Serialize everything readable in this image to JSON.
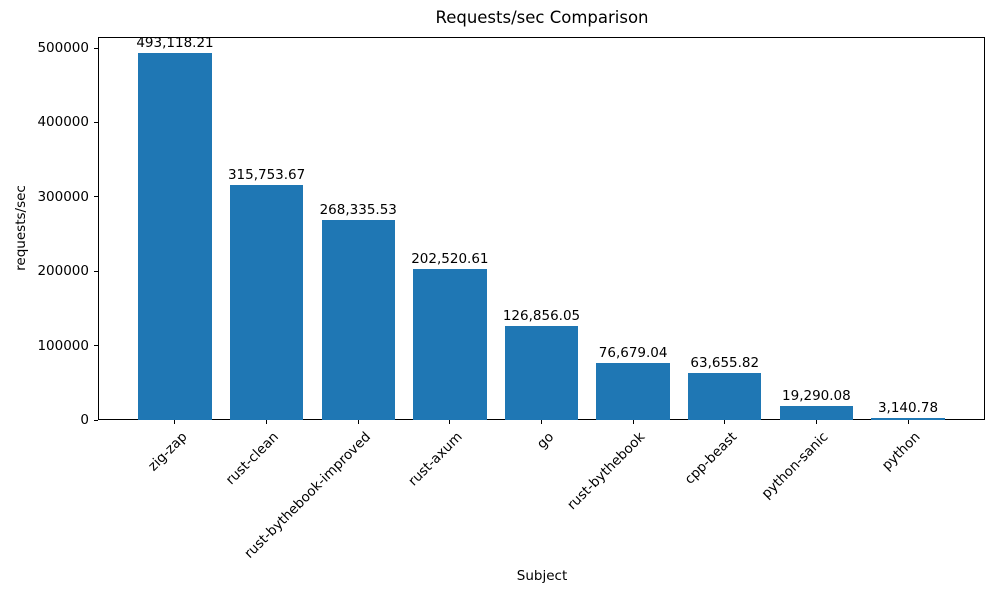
{
  "figure": {
    "background": "#ffffff"
  },
  "chart_data": {
    "type": "bar",
    "title": "Requests/sec Comparison",
    "xlabel": "Subject",
    "ylabel": "requests/sec",
    "categories": [
      "zig-zap",
      "rust-clean",
      "rust-bythebook-improved",
      "rust-axum",
      "go",
      "rust-bythebook",
      "cpp-beast",
      "python-sanic",
      "python"
    ],
    "values": [
      493118.21,
      315753.67,
      268335.53,
      202520.61,
      126856.05,
      76679.04,
      63655.82,
      19290.08,
      3140.78
    ],
    "bar_labels": [
      "493,118.21",
      "315,753.67",
      "268,335.53",
      "202,520.61",
      "126,856.05",
      "76,679.04",
      "63,655.82",
      "19,290.08",
      "3,140.78"
    ],
    "yticks": [
      0,
      100000,
      200000,
      300000,
      400000,
      500000
    ],
    "ytick_labels": [
      "0",
      "100000",
      "200000",
      "300000",
      "400000",
      "500000"
    ],
    "ylim": [
      0,
      514785
    ],
    "xtick_rotation_deg": 45,
    "bar_color": "#1f77b4",
    "grid": false,
    "legend_position": "none"
  }
}
